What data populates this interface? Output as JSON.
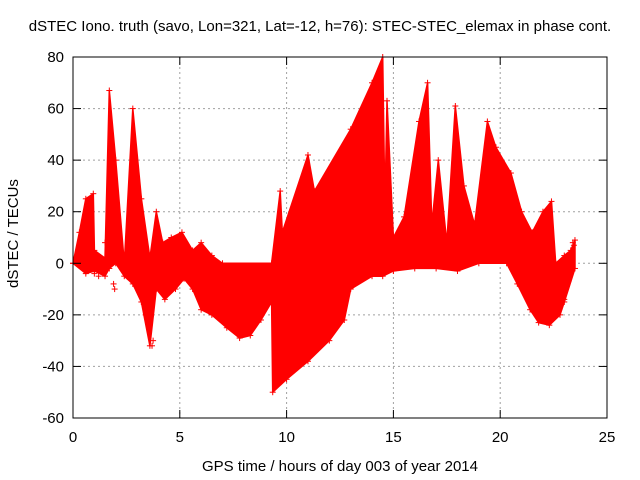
{
  "chart_data": {
    "type": "area",
    "title": "dSTEC Iono. truth (savo, Lon=321, Lat=-12, h=76): STEC-STEC_elemax in phase cont.",
    "xlabel": "GPS time / hours of day 003 of year 2014",
    "ylabel": "dSTEC  / TECUs",
    "xlim": [
      0,
      25
    ],
    "ylim": [
      -60,
      80
    ],
    "x_ticks": [
      0,
      5,
      10,
      15,
      20,
      25
    ],
    "y_ticks": [
      -60,
      -40,
      -20,
      0,
      20,
      40,
      60,
      80
    ],
    "x_tick_labels": [
      "0",
      "5",
      "10",
      "15",
      "20",
      "25"
    ],
    "y_tick_labels": [
      "-60",
      "-40",
      "-20",
      "0",
      "20",
      "40",
      "60",
      "80"
    ],
    "grid": true,
    "series": [
      {
        "name": "dSTEC",
        "color": "#ff0000",
        "marker": "plus",
        "upper_envelope": [
          [
            0.0,
            0
          ],
          [
            0.3,
            12
          ],
          [
            0.6,
            25
          ],
          [
            0.95,
            27
          ],
          [
            1.0,
            5
          ],
          [
            1.5,
            2
          ],
          [
            1.7,
            67
          ],
          [
            2.0,
            40
          ],
          [
            2.4,
            0
          ],
          [
            2.8,
            60
          ],
          [
            3.2,
            25
          ],
          [
            3.6,
            2
          ],
          [
            3.9,
            20
          ],
          [
            4.2,
            8
          ],
          [
            4.6,
            10
          ],
          [
            5.1,
            12
          ],
          [
            5.6,
            5
          ],
          [
            6.0,
            8
          ],
          [
            6.5,
            3
          ],
          [
            7.0,
            0
          ],
          [
            9.3,
            0
          ],
          [
            9.7,
            28
          ],
          [
            9.8,
            12
          ],
          [
            11.0,
            42
          ],
          [
            11.3,
            28
          ],
          [
            13.0,
            52
          ],
          [
            14.0,
            70
          ],
          [
            14.5,
            80
          ],
          [
            14.6,
            22
          ],
          [
            14.7,
            63
          ],
          [
            15.0,
            10
          ],
          [
            15.5,
            18
          ],
          [
            16.2,
            55
          ],
          [
            16.6,
            70
          ],
          [
            16.8,
            15
          ],
          [
            17.1,
            40
          ],
          [
            17.5,
            8
          ],
          [
            17.9,
            61
          ],
          [
            18.3,
            30
          ],
          [
            18.8,
            15
          ],
          [
            19.4,
            55
          ],
          [
            19.8,
            45
          ],
          [
            20.5,
            35
          ],
          [
            21.0,
            20
          ],
          [
            21.5,
            12
          ],
          [
            22.0,
            20
          ],
          [
            22.4,
            24
          ],
          [
            22.6,
            0
          ],
          [
            23.0,
            3
          ],
          [
            23.3,
            5
          ],
          [
            23.5,
            9
          ]
        ],
        "lower_envelope": [
          [
            0.0,
            0
          ],
          [
            0.6,
            -4
          ],
          [
            1.0,
            -3
          ],
          [
            1.5,
            -5
          ],
          [
            1.7,
            -2
          ],
          [
            2.0,
            0
          ],
          [
            2.4,
            -5
          ],
          [
            2.8,
            -8
          ],
          [
            3.2,
            -15
          ],
          [
            3.6,
            -32
          ],
          [
            3.9,
            -10
          ],
          [
            4.3,
            -14
          ],
          [
            4.8,
            -10
          ],
          [
            5.2,
            -6
          ],
          [
            5.6,
            -10
          ],
          [
            6.0,
            -18
          ],
          [
            6.5,
            -20
          ],
          [
            7.2,
            -25
          ],
          [
            7.8,
            -29
          ],
          [
            8.3,
            -28
          ],
          [
            8.8,
            -22
          ],
          [
            9.3,
            -15
          ],
          [
            9.35,
            -50
          ],
          [
            10.0,
            -45
          ],
          [
            11.0,
            -38
          ],
          [
            12.0,
            -30
          ],
          [
            12.7,
            -22
          ],
          [
            13.0,
            -10
          ],
          [
            14.0,
            -5
          ],
          [
            14.5,
            -5
          ],
          [
            15.0,
            -3
          ],
          [
            16.0,
            -2
          ],
          [
            17.0,
            -2
          ],
          [
            18.0,
            -3
          ],
          [
            19.0,
            0
          ],
          [
            20.3,
            0
          ],
          [
            20.8,
            -8
          ],
          [
            21.4,
            -18
          ],
          [
            21.8,
            -23
          ],
          [
            22.3,
            -24
          ],
          [
            22.8,
            -20
          ],
          [
            23.0,
            -15
          ],
          [
            23.5,
            -2
          ]
        ],
        "outliers": [
          [
            1.0,
            -4
          ],
          [
            1.2,
            -5
          ],
          [
            1.5,
            8
          ],
          [
            1.55,
            2
          ],
          [
            1.9,
            -8
          ],
          [
            1.95,
            -10
          ],
          [
            3.7,
            -32
          ],
          [
            3.75,
            -30
          ],
          [
            3.4,
            -20
          ],
          [
            5.0,
            3
          ],
          [
            23.4,
            8
          ],
          [
            23.45,
            7
          ],
          [
            23.2,
            -7
          ],
          [
            23.0,
            -14
          ]
        ]
      }
    ]
  }
}
